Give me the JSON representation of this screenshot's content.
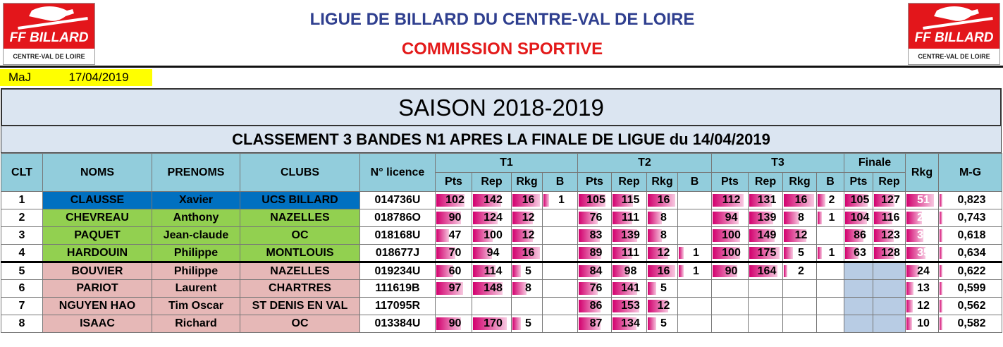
{
  "header": {
    "logo_brand": "FF BILLARD",
    "logo_region": "CENTRE-VAL DE LOIRE",
    "title": "LIGUE DE BILLARD DU CENTRE-VAL DE LOIRE",
    "subtitle": "COMMISSION SPORTIVE",
    "maj_label": "MaJ",
    "maj_date": "17/04/2019"
  },
  "season": "SAISON 2018-2019",
  "classement_title": "CLASSEMENT 3 BANDES N1 APRES LA FINALE DE LIGUE du 14/04/2019",
  "columns": {
    "clt": "CLT",
    "noms": "NOMS",
    "prenoms": "PRENOMS",
    "clubs": "CLUBS",
    "licence": "N° licence",
    "t1": "T1",
    "t2": "T2",
    "t3": "T3",
    "finale": "Finale",
    "rkg": "Rkg",
    "mg": "M-G",
    "pts": "Pts",
    "rep": "Rep",
    "rkg_sub": "Rkg",
    "b": "B"
  },
  "colors": {
    "header": "#92cddc",
    "first": "#0070c0",
    "qualified": "#92d050",
    "others": "#e6b8b7",
    "finale_empty": "#b8cce4",
    "bar": "#d2006e"
  },
  "rows": [
    {
      "clt": "1",
      "nom": "CLAUSSE",
      "prenom": "Xavier",
      "club": "UCS BILLARD",
      "licence": "014736U",
      "t1": [
        "102",
        "142",
        "16",
        "1"
      ],
      "t2": [
        "105",
        "115",
        "16",
        ""
      ],
      "t3": [
        "112",
        "131",
        "16",
        "2"
      ],
      "fin": [
        "105",
        "127"
      ],
      "rkg": "51",
      "mg": "0,823",
      "color": "blue"
    },
    {
      "clt": "2",
      "nom": "CHEVREAU",
      "prenom": "Anthony",
      "club": "NAZELLES",
      "licence": "018786O",
      "t1": [
        "90",
        "124",
        "12",
        ""
      ],
      "t2": [
        "76",
        "111",
        "8",
        ""
      ],
      "t3": [
        "94",
        "139",
        "8",
        "1"
      ],
      "fin": [
        "104",
        "116"
      ],
      "rkg": "29",
      "mg": "0,743",
      "color": "green"
    },
    {
      "clt": "3",
      "nom": "PAQUET",
      "prenom": "Jean-claude",
      "club": "OC",
      "licence": "018168U",
      "t1": [
        "47",
        "100",
        "12",
        ""
      ],
      "t2": [
        "83",
        "139",
        "8",
        ""
      ],
      "t3": [
        "100",
        "149",
        "12",
        ""
      ],
      "fin": [
        "86",
        "123"
      ],
      "rkg": "32",
      "mg": "0,618",
      "color": "green"
    },
    {
      "clt": "4",
      "nom": "HARDOUIN",
      "prenom": "Philippe",
      "club": "MONTLOUIS",
      "licence": "018677J",
      "t1": [
        "70",
        "94",
        "16",
        ""
      ],
      "t2": [
        "89",
        "111",
        "12",
        "1"
      ],
      "t3": [
        "100",
        "175",
        "5",
        "1"
      ],
      "fin": [
        "63",
        "128"
      ],
      "rkg": "35",
      "mg": "0,634",
      "color": "green"
    },
    {
      "clt": "5",
      "nom": "BOUVIER",
      "prenom": "Philippe",
      "club": "NAZELLES",
      "licence": "019234U",
      "t1": [
        "60",
        "114",
        "5",
        ""
      ],
      "t2": [
        "84",
        "98",
        "16",
        "1"
      ],
      "t3": [
        "90",
        "164",
        "2",
        ""
      ],
      "fin": [
        "",
        ""
      ],
      "rkg": "24",
      "mg": "0,622",
      "color": "pink"
    },
    {
      "clt": "6",
      "nom": "PARIOT",
      "prenom": "Laurent",
      "club": "CHARTRES",
      "licence": "111619B",
      "t1": [
        "97",
        "148",
        "8",
        ""
      ],
      "t2": [
        "76",
        "141",
        "5",
        ""
      ],
      "t3": [
        "",
        "",
        "",
        ""
      ],
      "fin": [
        "",
        ""
      ],
      "rkg": "13",
      "mg": "0,599",
      "color": "pink"
    },
    {
      "clt": "7",
      "nom": "NGUYEN HAO",
      "prenom": "Tim Oscar",
      "club": "ST DENIS EN VAL",
      "licence": "117095R",
      "t1": [
        "",
        "",
        "",
        ""
      ],
      "t2": [
        "86",
        "153",
        "12",
        ""
      ],
      "t3": [
        "",
        "",
        "",
        ""
      ],
      "fin": [
        "",
        ""
      ],
      "rkg": "12",
      "mg": "0,562",
      "color": "pink"
    },
    {
      "clt": "8",
      "nom": "ISAAC",
      "prenom": "Richard",
      "club": "OC",
      "licence": "013384U",
      "t1": [
        "90",
        "170",
        "5",
        ""
      ],
      "t2": [
        "87",
        "134",
        "5",
        ""
      ],
      "t3": [
        "",
        "",
        "",
        ""
      ],
      "fin": [
        "",
        ""
      ],
      "rkg": "10",
      "mg": "0,582",
      "color": "pink"
    }
  ]
}
